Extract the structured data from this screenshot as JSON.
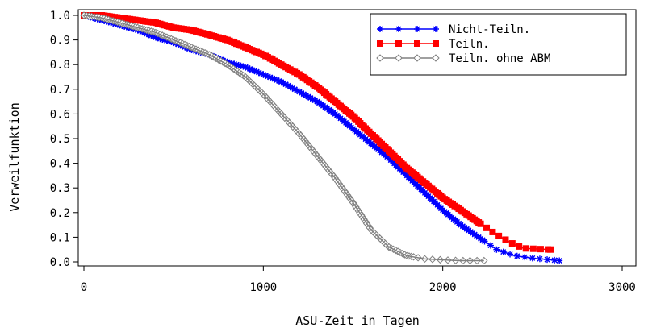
{
  "chart_data": {
    "type": "line",
    "title": "",
    "xlabel": "ASU-Zeit in Tagen",
    "ylabel": "Verweilfunktion",
    "xlim": [
      0,
      3000
    ],
    "ylim": [
      0,
      1.0
    ],
    "x_ticks": [
      {
        "value": 0,
        "label": "0"
      },
      {
        "value": 1000,
        "label": "1000"
      },
      {
        "value": 2000,
        "label": "2000"
      },
      {
        "value": 3000,
        "label": "3000"
      }
    ],
    "y_ticks": [
      {
        "value": 0.0,
        "label": "0.0"
      },
      {
        "value": 0.1,
        "label": "0.1"
      },
      {
        "value": 0.2,
        "label": "0.2"
      },
      {
        "value": 0.3,
        "label": "0.3"
      },
      {
        "value": 0.4,
        "label": "0.4"
      },
      {
        "value": 0.5,
        "label": "0.5"
      },
      {
        "value": 0.6,
        "label": "0.6"
      },
      {
        "value": 0.7,
        "label": "0.7"
      },
      {
        "value": 0.8,
        "label": "0.8"
      },
      {
        "value": 0.9,
        "label": "0.9"
      },
      {
        "value": 1.0,
        "label": "1.0"
      }
    ],
    "grid": false,
    "legend_position": "top-right",
    "series": [
      {
        "name": "Nicht-Teiln.",
        "color": "#0000ff",
        "marker": "star",
        "x": [
          0,
          100,
          200,
          300,
          400,
          500,
          600,
          700,
          800,
          900,
          1000,
          1100,
          1200,
          1300,
          1400,
          1500,
          1600,
          1700,
          1800,
          1900,
          2000,
          2100,
          2200,
          2300,
          2400,
          2500,
          2650
        ],
        "y": [
          1.0,
          0.98,
          0.96,
          0.94,
          0.91,
          0.89,
          0.86,
          0.84,
          0.81,
          0.79,
          0.76,
          0.73,
          0.69,
          0.65,
          0.6,
          0.54,
          0.48,
          0.42,
          0.35,
          0.28,
          0.21,
          0.15,
          0.1,
          0.05,
          0.025,
          0.015,
          0.005
        ]
      },
      {
        "name": "Teiln.",
        "color": "#ff0000",
        "marker": "square",
        "x": [
          0,
          100,
          200,
          300,
          400,
          500,
          600,
          700,
          800,
          900,
          1000,
          1100,
          1200,
          1300,
          1400,
          1500,
          1600,
          1700,
          1800,
          1900,
          2000,
          2100,
          2200,
          2300,
          2400,
          2450,
          2600
        ],
        "y": [
          1.0,
          1.0,
          0.99,
          0.98,
          0.97,
          0.95,
          0.94,
          0.92,
          0.9,
          0.87,
          0.84,
          0.8,
          0.76,
          0.71,
          0.65,
          0.59,
          0.52,
          0.45,
          0.38,
          0.32,
          0.26,
          0.21,
          0.16,
          0.11,
          0.07,
          0.055,
          0.05
        ]
      },
      {
        "name": "Teiln. ohne ABM",
        "color": "#808080",
        "marker": "diamond",
        "x": [
          0,
          100,
          200,
          300,
          400,
          500,
          600,
          700,
          800,
          900,
          1000,
          1100,
          1200,
          1300,
          1400,
          1500,
          1600,
          1700,
          1800,
          1900,
          2000,
          2100,
          2230
        ],
        "y": [
          1.0,
          0.99,
          0.97,
          0.95,
          0.93,
          0.9,
          0.87,
          0.84,
          0.8,
          0.75,
          0.68,
          0.6,
          0.52,
          0.43,
          0.34,
          0.24,
          0.13,
          0.06,
          0.025,
          0.012,
          0.008,
          0.005,
          0.005
        ]
      }
    ]
  }
}
